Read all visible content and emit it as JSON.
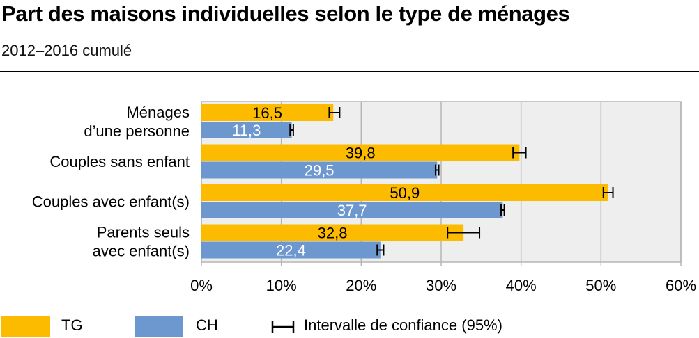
{
  "title": "Part des maisons individuelles selon le type de ménages",
  "subtitle": "2012–2016 cumulé",
  "colors": {
    "TG": "#FDBB00",
    "CH": "#6D98CF",
    "plot_bg": "#EEEEEE",
    "grid": "#B5B5B5"
  },
  "legend": {
    "tg_label": "TG",
    "ch_label": "CH",
    "ci_label": "Intervalle de confiance (95%)",
    "ci_icon": "error-bar-icon"
  },
  "chart_data": {
    "type": "bar",
    "orientation": "horizontal",
    "categories": [
      [
        "Ménages",
        "d’une personne"
      ],
      [
        "Couples sans enfant"
      ],
      [
        "Couples avec enfant(s)"
      ],
      [
        "Parents seuls",
        "avec enfant(s)"
      ]
    ],
    "series": [
      {
        "name": "TG",
        "values": [
          16.5,
          39.8,
          50.9,
          32.8
        ],
        "labels": [
          "16,5",
          "39,8",
          "50,9",
          "32,8"
        ],
        "ci": [
          [
            16.0,
            17.3
          ],
          [
            39.0,
            40.6
          ],
          [
            50.3,
            51.5
          ],
          [
            30.8,
            34.8
          ]
        ]
      },
      {
        "name": "CH",
        "values": [
          11.3,
          29.5,
          37.7,
          22.4
        ],
        "labels": [
          "11,3",
          "29,5",
          "37,7",
          "22,4"
        ],
        "ci": [
          [
            11.1,
            11.5
          ],
          [
            29.3,
            29.7
          ],
          [
            37.5,
            37.9
          ],
          [
            22.0,
            22.8
          ]
        ]
      }
    ],
    "xlim": [
      0,
      60
    ],
    "xticks": [
      "0%",
      "10%",
      "20%",
      "30%",
      "40%",
      "50%",
      "60%"
    ],
    "grid": true,
    "legend_position": "bottom"
  }
}
